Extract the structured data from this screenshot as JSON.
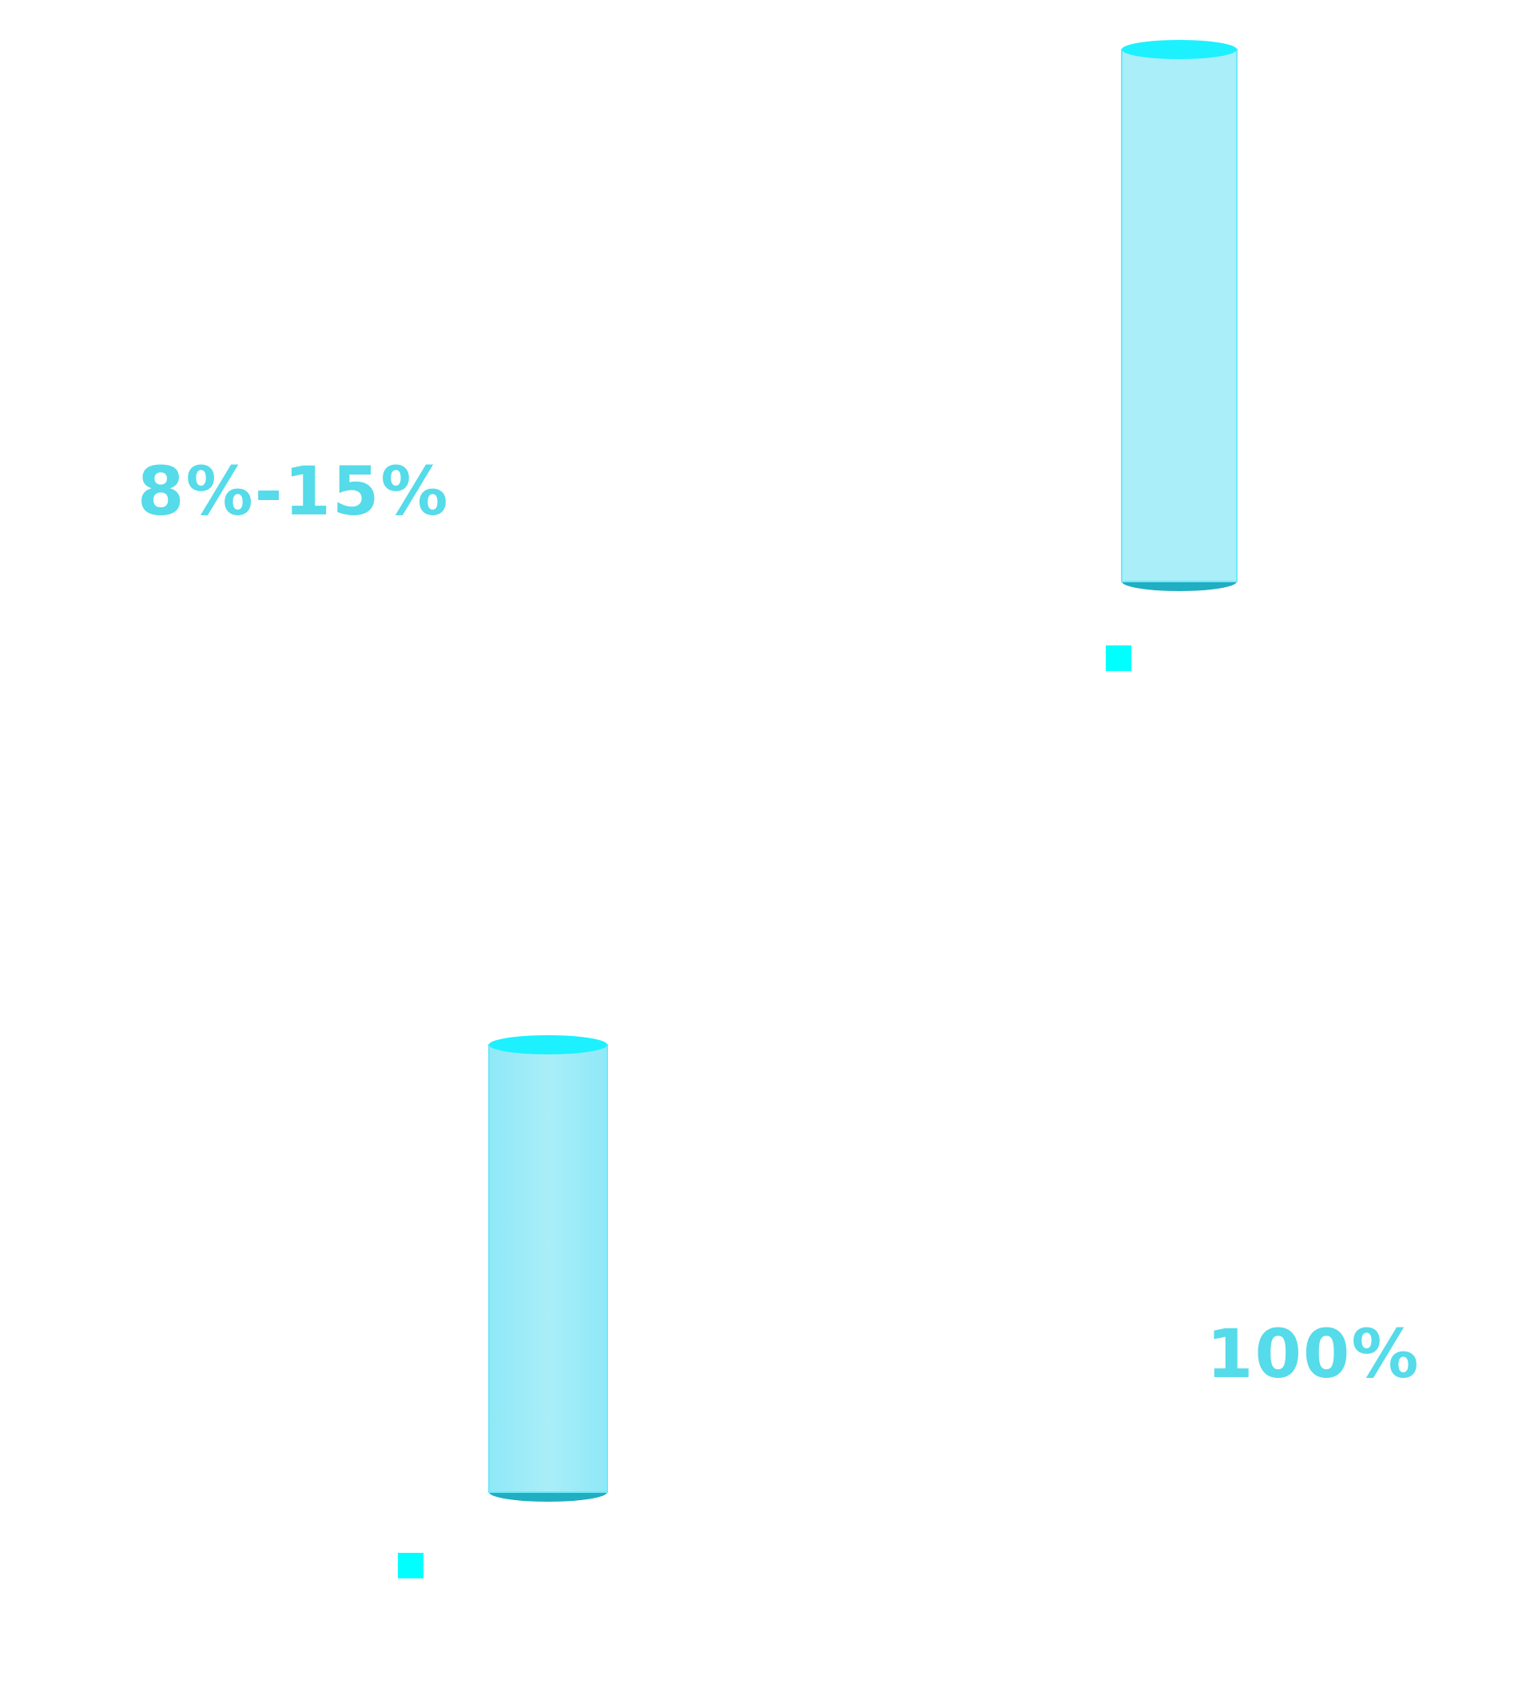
{
  "sections": [
    {
      "headline_value": "8%-15%",
      "chart_data": {
        "type": "bar",
        "style": "cylinder",
        "categories": [
          ""
        ],
        "series": [
          {
            "values": [
              1
            ]
          }
        ],
        "legend_placement": "bottom",
        "grid": false,
        "colors": {
          "top": "#1df0ff",
          "body": "#a9eef9",
          "base": "#1faec2",
          "legend": "#00ffff"
        }
      }
    },
    {
      "headline_value": "100%",
      "chart_data": {
        "type": "bar",
        "style": "cylinder",
        "categories": [
          ""
        ],
        "series": [
          {
            "values": [
              1
            ]
          }
        ],
        "legend_placement": "bottom",
        "grid": false,
        "colors": {
          "top": "#1df0ff",
          "body": "#a9eef9",
          "base": "#1faec2",
          "legend": "#00ffff"
        }
      }
    }
  ],
  "accent_color": "#55dbe9"
}
